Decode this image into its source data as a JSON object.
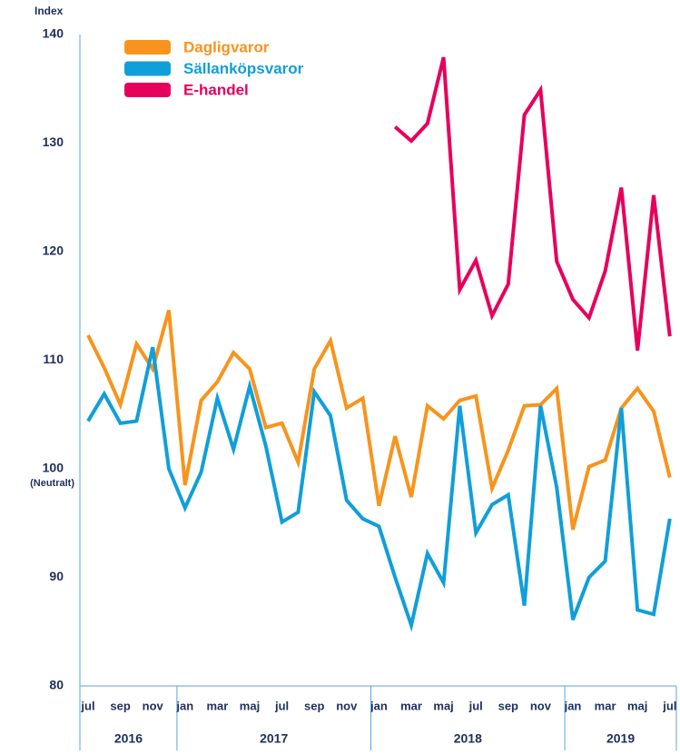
{
  "chart_data": {
    "type": "line",
    "y_axis_label": "Index",
    "neutral_label": "(Neutralt)",
    "categories": [
      "jul",
      null,
      "sep",
      null,
      "nov",
      null,
      "jan",
      null,
      "mar",
      null,
      "maj",
      null,
      "jul",
      null,
      "sep",
      null,
      "nov",
      null,
      "jan",
      null,
      "mar",
      null,
      "maj",
      null,
      "jul",
      null,
      "sep",
      null,
      "nov",
      null,
      "jan",
      null,
      "mar",
      null,
      "maj",
      null,
      "jul"
    ],
    "years": [
      "2016",
      "2017",
      "2018",
      "2019"
    ],
    "series": [
      {
        "name": "Dagligvaror",
        "color": "#f7941d",
        "values": [
          112.3,
          109.3,
          105.9,
          111.5,
          109.2,
          114.6,
          98.5,
          106.3,
          108,
          110.7,
          109.2,
          103.8,
          104.2,
          100.6,
          109.2,
          111.8,
          105.6,
          106.5,
          96.6,
          103,
          97.4,
          105.8,
          104.6,
          106.3,
          106.7,
          98.2,
          101.7,
          105.8,
          105.9,
          107.4,
          94.4,
          100.2,
          100.8,
          105.6,
          107.4,
          105.3,
          99.2
        ]
      },
      {
        "name": "Sällanköpsvaror",
        "color": "#109fd8",
        "values": [
          104.4,
          106.9,
          104.2,
          104.4,
          111.2,
          100,
          96.4,
          99.7,
          106.5,
          101.8,
          107.6,
          102.1,
          95.1,
          96,
          107.1,
          104.9,
          97.1,
          95.4,
          94.7,
          90,
          85.6,
          92.2,
          89.5,
          105.8,
          94.1,
          96.7,
          97.6,
          87.4,
          105.8,
          98.3,
          86.1,
          90,
          91.5,
          105.6,
          87,
          86.6,
          95.4
        ]
      },
      {
        "name": "E-handel",
        "color": "#e6005c",
        "values": [
          null,
          null,
          null,
          null,
          null,
          null,
          null,
          null,
          null,
          null,
          null,
          null,
          null,
          null,
          null,
          null,
          null,
          null,
          null,
          131.5,
          130.2,
          131.8,
          137.9,
          116.5,
          119.2,
          114.1,
          117,
          132.6,
          134.9,
          119.1,
          115.6,
          113.9,
          118.2,
          125.9,
          110.9,
          125.2,
          112.2
        ]
      }
    ],
    "reference_line": {
      "value": 100
    },
    "ylim": [
      80,
      140
    ],
    "yticks": [
      80,
      90,
      100,
      110,
      120,
      130,
      140
    ],
    "legend": "top-left"
  }
}
